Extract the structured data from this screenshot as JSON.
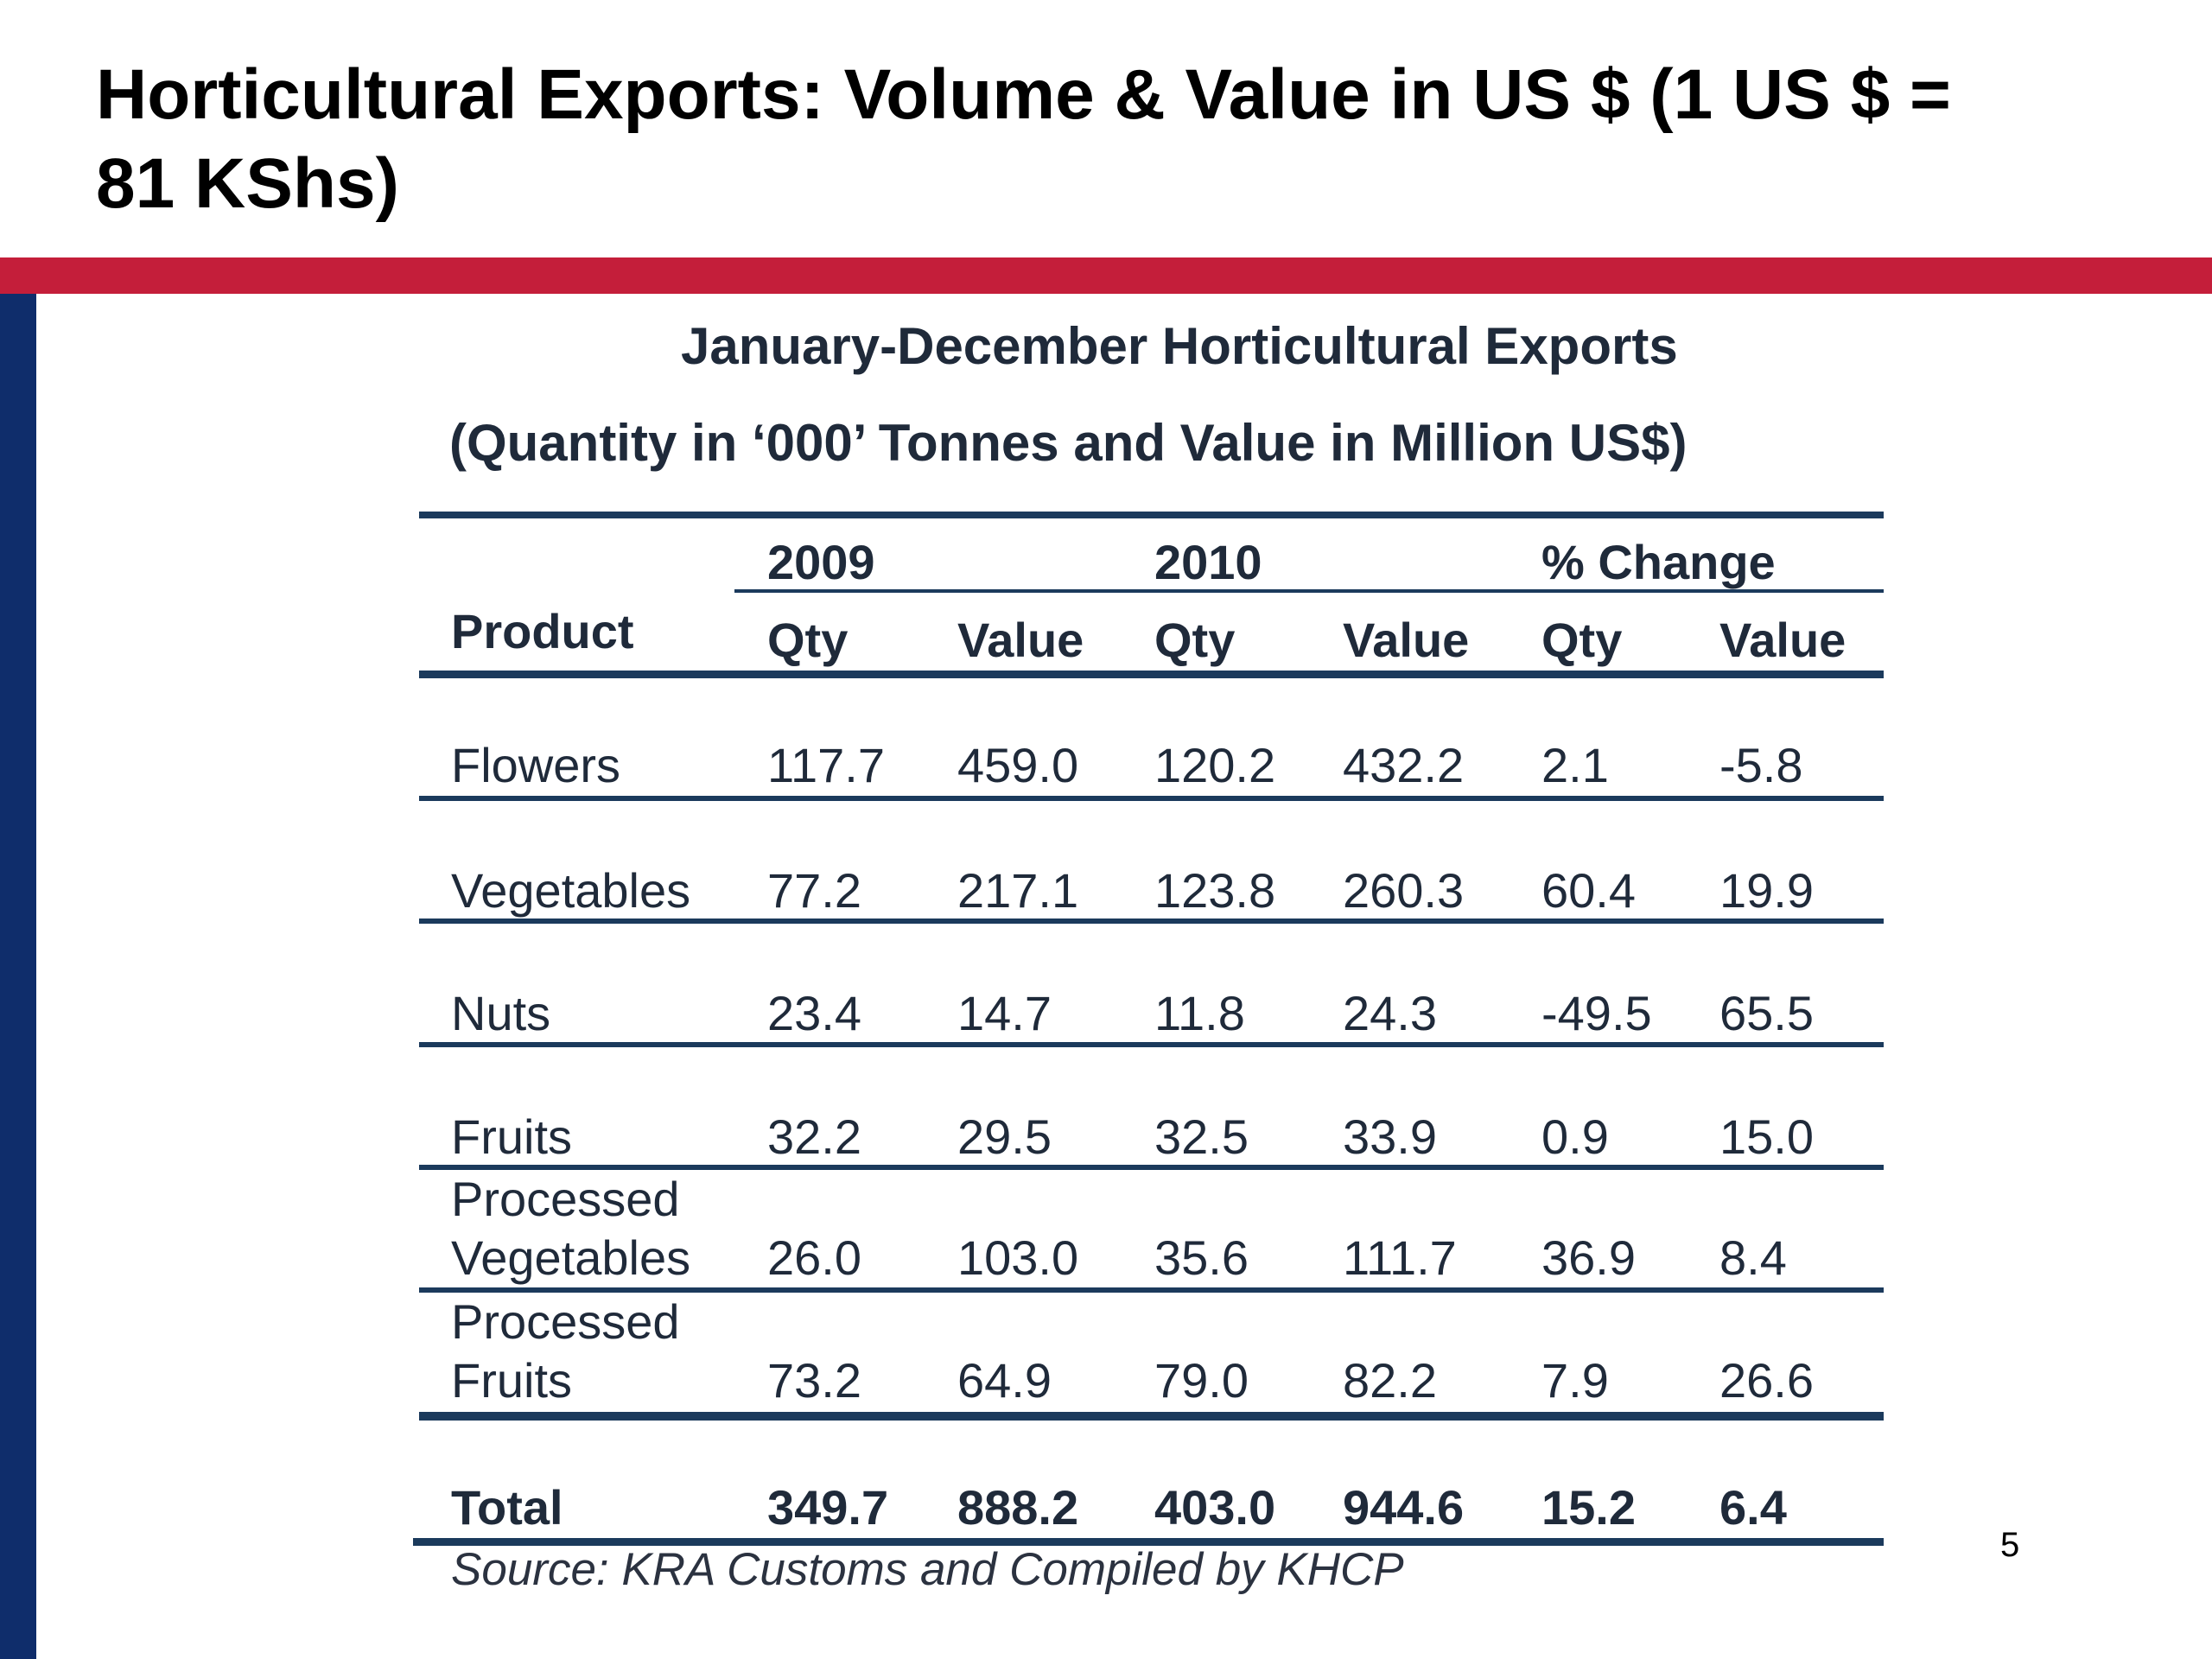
{
  "slide": {
    "title": "Horticultural Exports: Volume & Value in US $ (1 US $ = 81 KShs)",
    "page_number": "5"
  },
  "table": {
    "title": "January-December Horticultural Exports",
    "subtitle": "(Quantity in ‘000’ Tonnes and Value in Million US$)",
    "group_headers": [
      "2009",
      "2010",
      "% Change"
    ],
    "column_headers": [
      "Product",
      "Qty",
      "Value",
      "Qty",
      "Value",
      "Qty",
      "Value"
    ],
    "rows": [
      {
        "product_line1": "",
        "product_line2": "Flowers",
        "values": [
          "117.7",
          "459.0",
          "120.2",
          "432.2",
          "2.1",
          "-5.8"
        ]
      },
      {
        "product_line1": "",
        "product_line2": "Vegetables",
        "values": [
          "77.2",
          "217.1",
          "123.8",
          "260.3",
          "60.4",
          "19.9"
        ]
      },
      {
        "product_line1": "",
        "product_line2": "Nuts",
        "values": [
          "23.4",
          "14.7",
          "11.8",
          "24.3",
          "-49.5",
          "65.5"
        ]
      },
      {
        "product_line1": "",
        "product_line2": "Fruits",
        "values": [
          "32.2",
          "29.5",
          "32.5",
          "33.9",
          "0.9",
          "15.0"
        ]
      },
      {
        "product_line1": "Processed",
        "product_line2": "Vegetables",
        "values": [
          "26.0",
          "103.0",
          "35.6",
          "111.7",
          "36.9",
          "8.4"
        ]
      },
      {
        "product_line1": "Processed",
        "product_line2": "Fruits",
        "values": [
          "73.2",
          "64.9",
          "79.0",
          "82.2",
          "7.9",
          "26.6"
        ]
      }
    ],
    "total": {
      "label": "Total",
      "values": [
        "349.7",
        "888.2",
        "403.0",
        "944.6",
        "15.2",
        "6.4"
      ]
    },
    "source": "Source: KRA Customs and Compiled by KHCP"
  }
}
